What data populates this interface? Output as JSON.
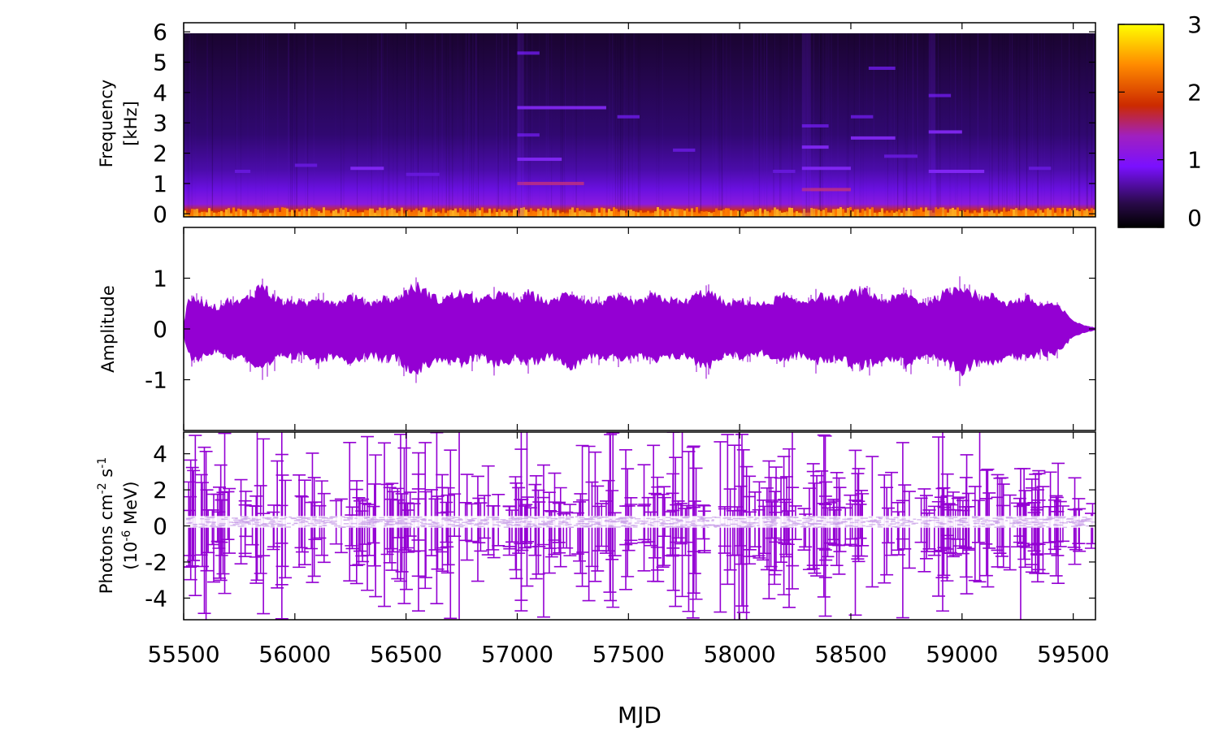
{
  "chart_data": [
    {
      "type": "heatmap",
      "panel": "spectrogram",
      "ylabel_line1": "Frequency",
      "ylabel_line2": "[kHz]",
      "yticks": [
        "0",
        "1",
        "2",
        "3",
        "4",
        "5",
        "6"
      ],
      "ylim": [
        -0.1,
        6.3
      ],
      "colorbar": {
        "range": [
          0,
          3
        ],
        "ticks": [
          "0",
          "1",
          "2",
          "3"
        ],
        "colors": [
          "#000000",
          "#3a0a6e",
          "#7a10ff",
          "#cc2a00",
          "#ff8a00",
          "#ffff00"
        ]
      },
      "horizontal_features": [
        {
          "x0": 55730,
          "x1": 55800,
          "y": 1.4,
          "v": 1.0
        },
        {
          "x0": 56000,
          "x1": 56100,
          "y": 1.6,
          "v": 1.0
        },
        {
          "x0": 56250,
          "x1": 56400,
          "y": 1.5,
          "v": 1.1
        },
        {
          "x0": 56500,
          "x1": 56650,
          "y": 1.3,
          "v": 1.0
        },
        {
          "x0": 57000,
          "x1": 57100,
          "y": 5.3,
          "v": 1.0
        },
        {
          "x0": 57000,
          "x1": 57400,
          "y": 3.5,
          "v": 1.2
        },
        {
          "x0": 57000,
          "x1": 57100,
          "y": 2.6,
          "v": 1.0
        },
        {
          "x0": 57000,
          "x1": 57200,
          "y": 1.8,
          "v": 1.2
        },
        {
          "x0": 57000,
          "x1": 57300,
          "y": 1.0,
          "v": 1.5
        },
        {
          "x0": 57450,
          "x1": 57550,
          "y": 3.2,
          "v": 0.9
        },
        {
          "x0": 57700,
          "x1": 57800,
          "y": 2.1,
          "v": 0.9
        },
        {
          "x0": 58150,
          "x1": 58250,
          "y": 1.4,
          "v": 1.0
        },
        {
          "x0": 58280,
          "x1": 58400,
          "y": 2.9,
          "v": 1.0
        },
        {
          "x0": 58280,
          "x1": 58400,
          "y": 2.2,
          "v": 1.1
        },
        {
          "x0": 58280,
          "x1": 58500,
          "y": 1.5,
          "v": 1.1
        },
        {
          "x0": 58280,
          "x1": 58500,
          "y": 0.8,
          "v": 1.4
        },
        {
          "x0": 58500,
          "x1": 58700,
          "y": 2.5,
          "v": 1.1
        },
        {
          "x0": 58500,
          "x1": 58600,
          "y": 3.2,
          "v": 1.0
        },
        {
          "x0": 58580,
          "x1": 58700,
          "y": 4.8,
          "v": 1.0
        },
        {
          "x0": 58650,
          "x1": 58800,
          "y": 1.9,
          "v": 1.0
        },
        {
          "x0": 58850,
          "x1": 59000,
          "y": 2.7,
          "v": 1.1
        },
        {
          "x0": 58850,
          "x1": 58950,
          "y": 3.9,
          "v": 1.0
        },
        {
          "x0": 58850,
          "x1": 59100,
          "y": 1.4,
          "v": 1.1
        },
        {
          "x0": 59300,
          "x1": 59400,
          "y": 1.5,
          "v": 1.0
        }
      ]
    },
    {
      "type": "line",
      "panel": "waveform",
      "ylabel": "Amplitude",
      "yticks": [
        "-1",
        "0",
        "1"
      ],
      "ylim": [
        -2.0,
        2.0
      ],
      "series": [
        {
          "color": "#9400d3",
          "envelope_x": [
            55500,
            55520,
            55550,
            55600,
            55650,
            55700,
            55750,
            55800,
            55850,
            55900,
            55950,
            56000,
            56050,
            56100,
            56150,
            56200,
            56250,
            56300,
            56350,
            56400,
            56450,
            56500,
            56550,
            56600,
            56650,
            56700,
            56750,
            56800,
            56850,
            56900,
            56950,
            57000,
            57050,
            57100,
            57150,
            57200,
            57250,
            57300,
            57350,
            57400,
            57450,
            57500,
            57550,
            57600,
            57650,
            57700,
            57750,
            57800,
            57850,
            57900,
            57950,
            58000,
            58050,
            58100,
            58150,
            58200,
            58250,
            58300,
            58350,
            58400,
            58450,
            58500,
            58550,
            58600,
            58650,
            58700,
            58750,
            58800,
            58850,
            58900,
            58950,
            59000,
            59050,
            59100,
            59150,
            59200,
            59250,
            59300,
            59350,
            59400,
            59450,
            59480,
            59520,
            59560,
            59600
          ],
          "envelope_y": [
            0.1,
            0.55,
            0.65,
            0.55,
            0.45,
            0.6,
            0.55,
            0.7,
            0.95,
            0.7,
            0.55,
            0.6,
            0.5,
            0.7,
            0.6,
            0.55,
            0.7,
            0.6,
            0.55,
            0.65,
            0.6,
            0.8,
            0.9,
            0.75,
            0.6,
            0.7,
            0.75,
            0.65,
            0.6,
            0.75,
            0.7,
            0.6,
            0.75,
            0.65,
            0.55,
            0.7,
            0.8,
            0.6,
            0.55,
            0.6,
            0.65,
            0.6,
            0.55,
            0.7,
            0.65,
            0.6,
            0.55,
            0.7,
            0.8,
            0.65,
            0.5,
            0.6,
            0.55,
            0.5,
            0.6,
            0.7,
            0.55,
            0.6,
            0.7,
            0.65,
            0.6,
            0.75,
            0.8,
            0.7,
            0.6,
            0.65,
            0.75,
            0.6,
            0.55,
            0.7,
            0.8,
            0.95,
            0.75,
            0.65,
            0.7,
            0.55,
            0.6,
            0.65,
            0.5,
            0.55,
            0.4,
            0.25,
            0.12,
            0.06,
            0.02
          ]
        }
      ]
    },
    {
      "type": "scatter",
      "panel": "photon-flux",
      "ylabel_line1": "Photons cm",
      "ylabel_sup1": "-2",
      "ylabel_mid": " s",
      "ylabel_sup2": "-1",
      "ylabel_line2_a": "(10",
      "ylabel_line2_sup": "-6",
      "ylabel_line2_b": " MeV)",
      "yticks": [
        "-4",
        "-2",
        "0",
        "2",
        "4"
      ],
      "ylim": [
        -5.2,
        5.2
      ],
      "series": [
        {
          "color": "#9400d3",
          "errorbars": true,
          "n_points": 380
        }
      ]
    }
  ],
  "xaxis": {
    "label": "MJD",
    "ticks": [
      "55500",
      "56000",
      "56500",
      "57000",
      "57500",
      "58000",
      "58500",
      "59000",
      "59500"
    ],
    "xlim": [
      55500,
      59600
    ]
  }
}
